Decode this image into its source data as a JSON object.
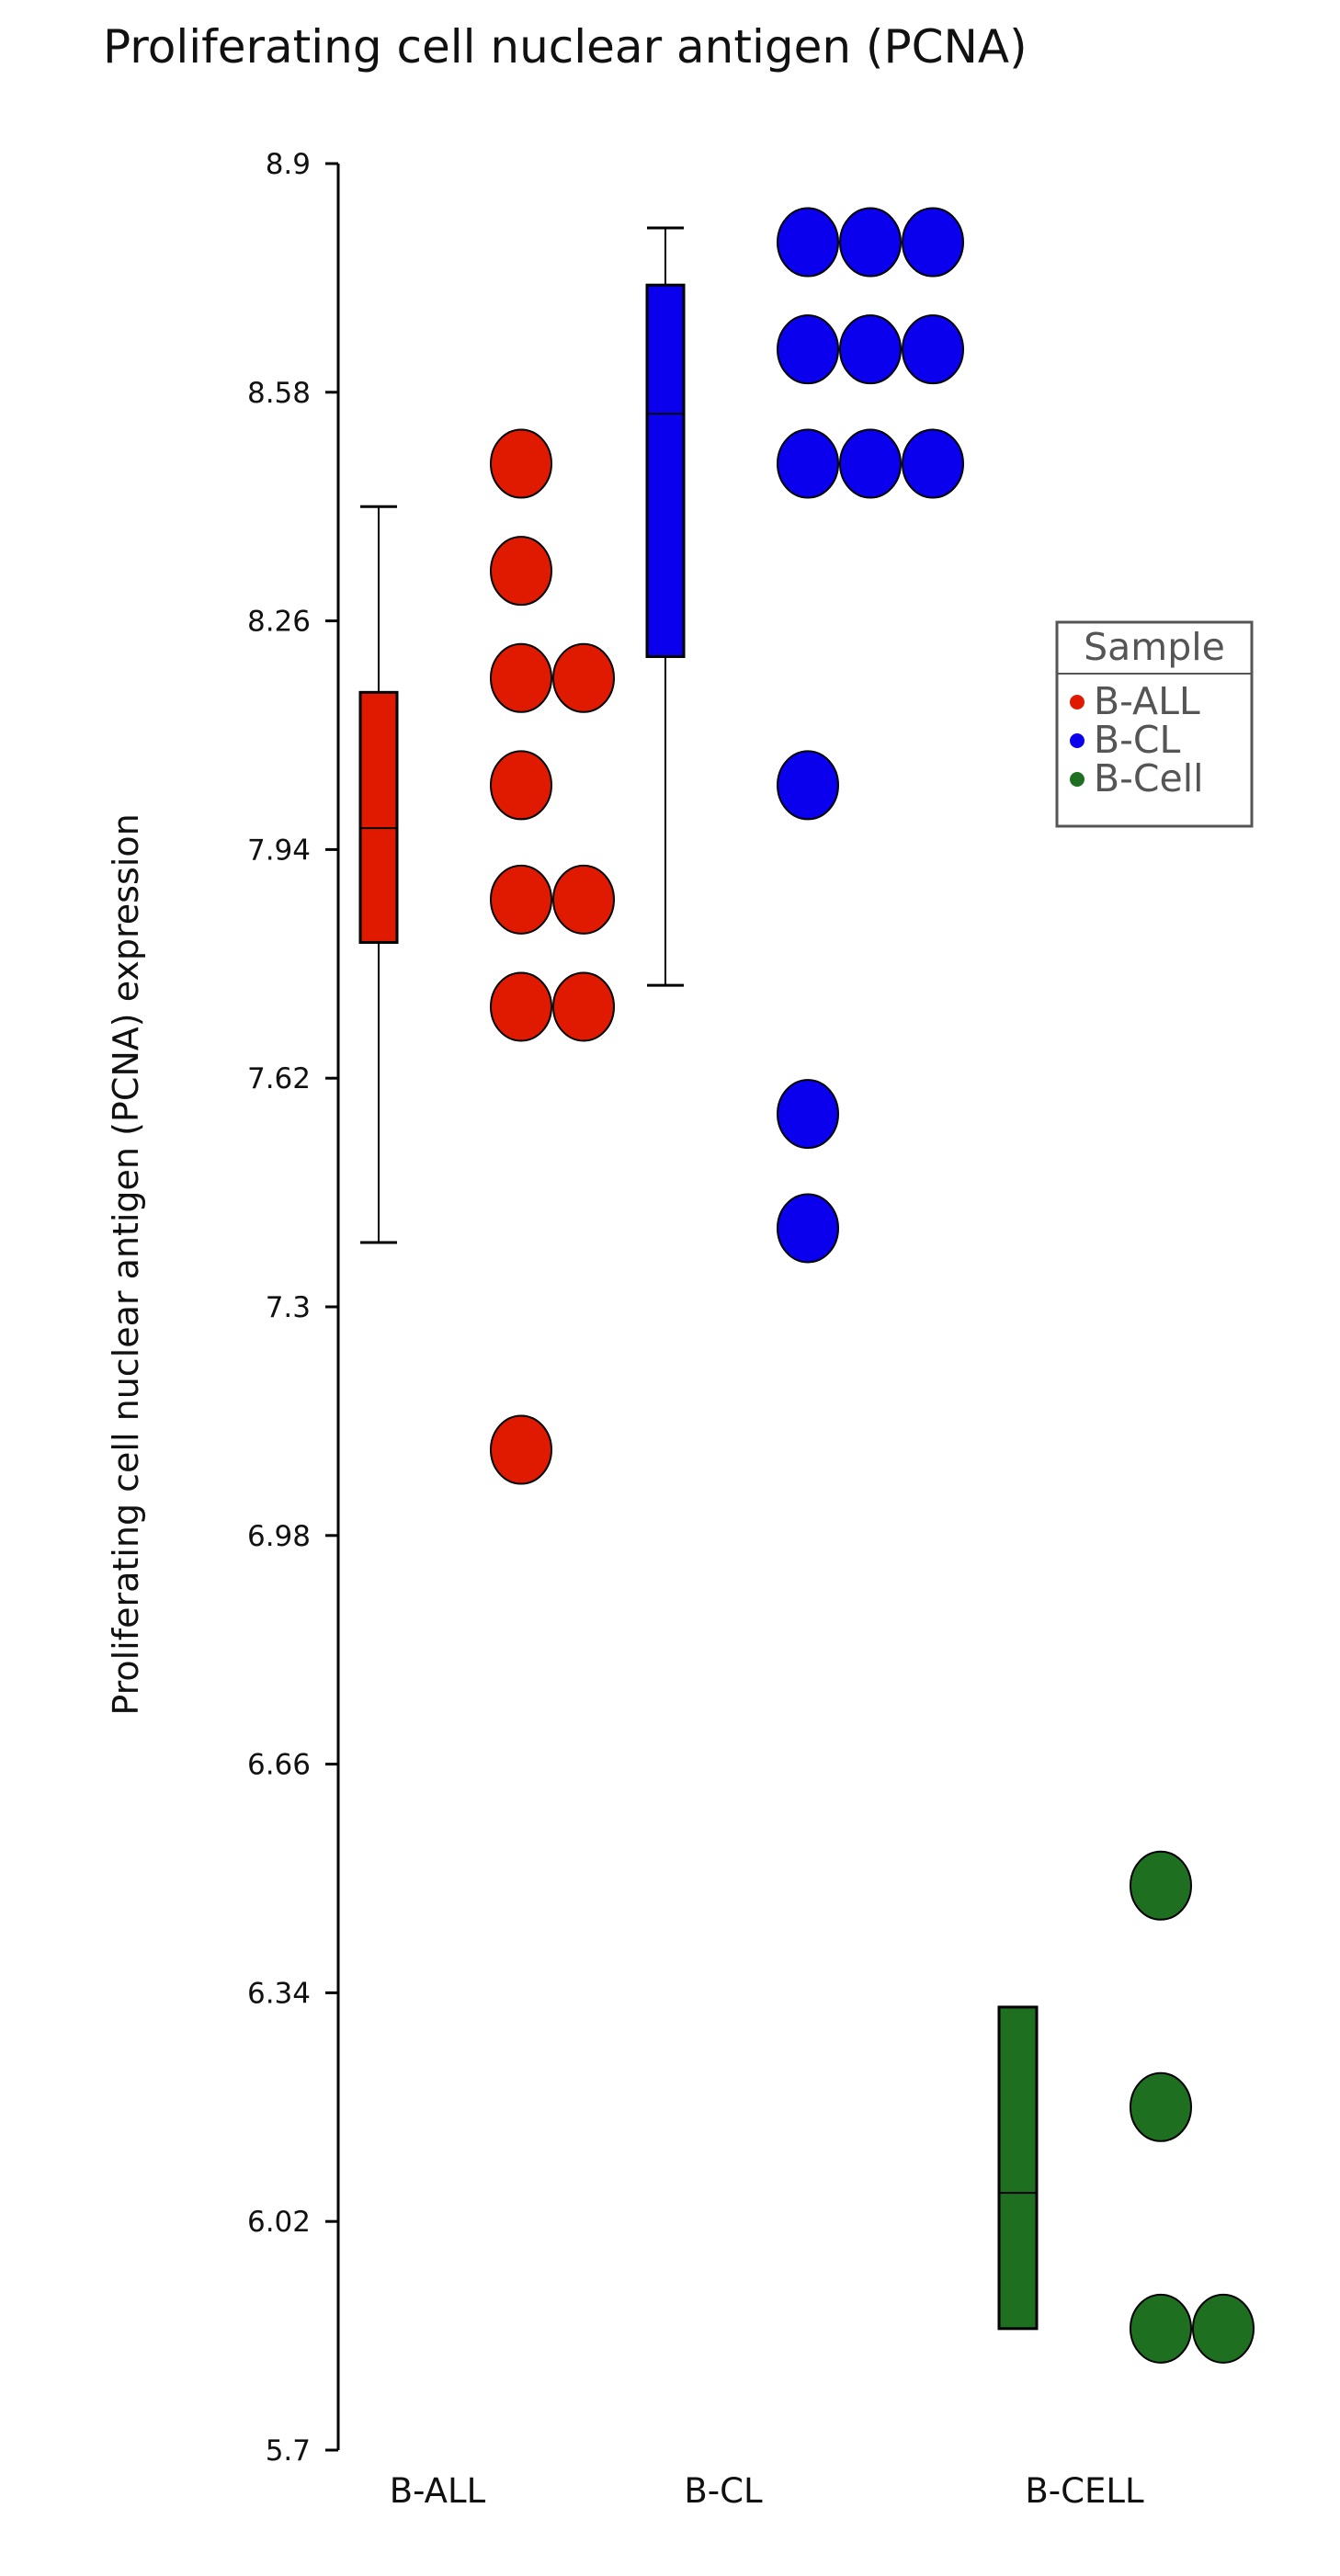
{
  "chart_data": {
    "type": "box-dot",
    "title": "Proliferating cell nuclear antigen (PCNA)",
    "ylabel": "Proliferating cell nuclear antigen (PCNA) expression",
    "xlabel": "",
    "ylim": [
      5.7,
      8.9
    ],
    "yticks": [
      "5.7",
      "6.02",
      "6.34",
      "6.66",
      "6.98",
      "7.3",
      "7.62",
      "7.94",
      "8.26",
      "8.58",
      "8.9"
    ],
    "categories": [
      "B-ALL",
      "B-CL",
      "B-CELL"
    ],
    "legend": {
      "title": "Sample",
      "position": "right",
      "items": [
        {
          "label": "B-ALL",
          "color": "#e01a00"
        },
        {
          "label": "B-CL",
          "color": "#0a00ee"
        },
        {
          "label": "B-Cell",
          "color": "#1e7020"
        }
      ]
    },
    "series": [
      {
        "category": "B-ALL",
        "color": "#e01a00",
        "box": {
          "whisker_low": 7.39,
          "q1": 7.81,
          "median": 7.97,
          "q3": 8.16,
          "whisker_high": 8.42
        },
        "points": [
          {
            "value": 8.48,
            "count": 1
          },
          {
            "value": 8.33,
            "count": 1
          },
          {
            "value": 8.18,
            "count": 2
          },
          {
            "value": 8.03,
            "count": 1
          },
          {
            "value": 7.87,
            "count": 2
          },
          {
            "value": 7.72,
            "count": 2
          },
          {
            "value": 7.1,
            "count": 1
          }
        ]
      },
      {
        "category": "B-CL",
        "color": "#0a00ee",
        "box": {
          "whisker_low": 7.75,
          "q1": 8.21,
          "median": 8.55,
          "q3": 8.73,
          "whisker_high": 8.81
        },
        "points": [
          {
            "value": 8.79,
            "count": 3
          },
          {
            "value": 8.64,
            "count": 3
          },
          {
            "value": 8.48,
            "count": 3
          },
          {
            "value": 8.03,
            "count": 1
          },
          {
            "value": 7.57,
            "count": 1
          },
          {
            "value": 7.41,
            "count": 1
          }
        ]
      },
      {
        "category": "B-CELL",
        "color": "#1e7020",
        "box": {
          "whisker_low": null,
          "q1": 5.87,
          "median": 6.06,
          "q3": 6.32,
          "whisker_high": null
        },
        "points": [
          {
            "value": 6.49,
            "count": 1
          },
          {
            "value": 6.18,
            "count": 1
          },
          {
            "value": 5.87,
            "count": 2
          }
        ]
      }
    ]
  }
}
